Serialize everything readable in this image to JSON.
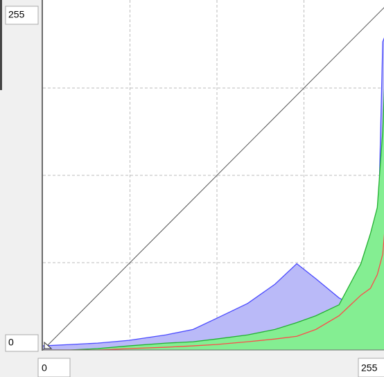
{
  "chart_data": {
    "type": "area",
    "xlim": [
      0,
      255
    ],
    "ylim": [
      0,
      255
    ],
    "xticks": [
      0,
      255
    ],
    "yticks": [
      0,
      255
    ],
    "grid": true,
    "x": [
      0,
      20,
      40,
      63,
      90,
      110,
      127,
      150,
      170,
      186,
      200,
      217,
      233,
      240,
      245,
      249,
      251
    ],
    "series": [
      {
        "name": "Blue",
        "color": "#4a4aff",
        "fill": "#babaf8",
        "values": [
          3,
          4,
          5,
          7,
          11,
          15,
          23,
          34,
          48,
          63,
          52,
          38,
          30,
          40,
          58,
          225,
          230
        ]
      },
      {
        "name": "Green",
        "color": "#22b030",
        "fill": "#84ee92",
        "values": [
          0,
          0,
          1,
          3,
          5,
          6,
          8,
          11,
          15,
          20,
          25,
          33,
          63,
          85,
          104,
          160,
          210
        ]
      },
      {
        "name": "Red",
        "color": "#ff4a4a",
        "fill": "none",
        "values": [
          0,
          0,
          0,
          1,
          2,
          3,
          4,
          6,
          8,
          10,
          15,
          25,
          40,
          45,
          55,
          70,
          94
        ]
      }
    ],
    "curve": {
      "x": [
        0,
        255
      ],
      "y": [
        0,
        255
      ],
      "color": "#555555"
    }
  }
}
